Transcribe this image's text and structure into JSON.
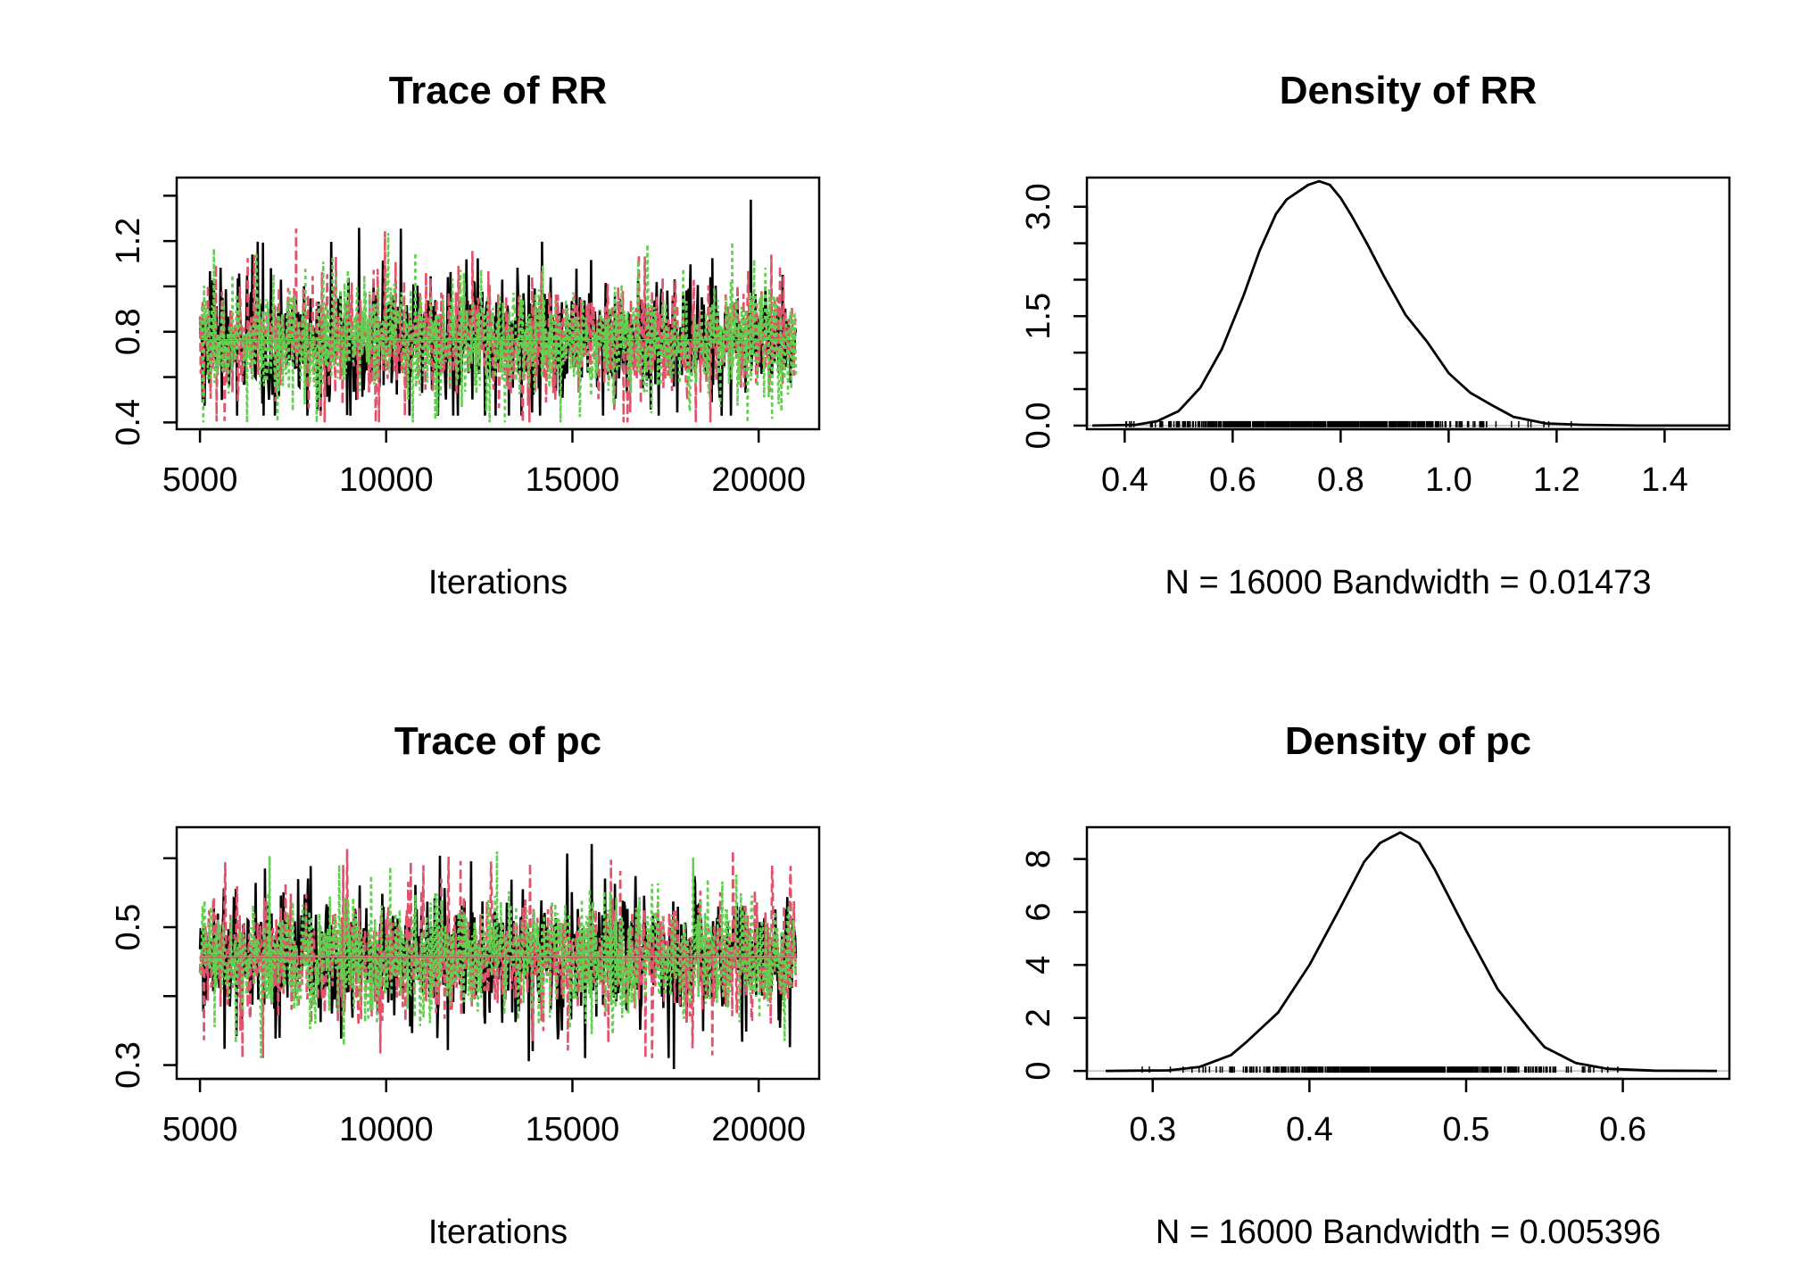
{
  "colors": {
    "chain1": "#000000",
    "chain2": "#DF536B",
    "chain3": "#61D04F"
  },
  "chart_data": [
    {
      "id": "trace-rr",
      "type": "line",
      "title": "Trace of RR",
      "xlabel": "Iterations",
      "ylabel": "",
      "xlim": [
        4375,
        21625
      ],
      "ylim": [
        0.37,
        1.48
      ],
      "xticks": [
        5000,
        10000,
        15000,
        20000
      ],
      "xtick_labels": [
        "5000",
        "10000",
        "15000",
        "20000"
      ],
      "yticks": [
        0.4,
        0.6,
        0.8,
        1.0,
        1.2,
        1.4
      ],
      "ytick_labels": [
        "0.4",
        "",
        "0.8",
        "",
        "1.2",
        ""
      ],
      "x_range": [
        5001,
        21000
      ],
      "series": [
        {
          "color": "#000000",
          "center": 0.765,
          "spread": 0.13,
          "min": 0.43,
          "max": 1.47
        },
        {
          "color": "#DF536B",
          "center": 0.765,
          "spread": 0.13,
          "min": 0.4,
          "max": 1.3
        },
        {
          "color": "#61D04F",
          "center": 0.765,
          "spread": 0.13,
          "min": 0.4,
          "max": 1.34
        }
      ]
    },
    {
      "id": "density-rr",
      "type": "line",
      "title": "Density of RR",
      "xlabel": "N = 16000   Bandwidth = 0.01473",
      "ylabel": "",
      "xlim": [
        0.33,
        1.52
      ],
      "ylim": [
        -0.05,
        3.4
      ],
      "xticks": [
        0.4,
        0.6,
        0.8,
        1.0,
        1.2,
        1.4
      ],
      "xtick_labels": [
        "0.4",
        "0.6",
        "0.8",
        "1.0",
        "1.2",
        "1.4"
      ],
      "yticks": [
        0.0,
        0.5,
        1.0,
        1.5,
        2.0,
        2.5,
        3.0
      ],
      "ytick_labels": [
        "0.0",
        "",
        "",
        "1.5",
        "",
        "",
        "3.0"
      ],
      "x": [
        0.34,
        0.42,
        0.46,
        0.5,
        0.54,
        0.58,
        0.62,
        0.65,
        0.68,
        0.7,
        0.72,
        0.74,
        0.76,
        0.78,
        0.8,
        0.82,
        0.85,
        0.88,
        0.92,
        0.96,
        1.0,
        1.04,
        1.08,
        1.12,
        1.18,
        1.25,
        1.35,
        1.52
      ],
      "y": [
        0.0,
        0.01,
        0.06,
        0.2,
        0.52,
        1.05,
        1.78,
        2.4,
        2.9,
        3.1,
        3.2,
        3.3,
        3.35,
        3.3,
        3.12,
        2.88,
        2.48,
        2.05,
        1.52,
        1.15,
        0.72,
        0.45,
        0.28,
        0.12,
        0.03,
        0.01,
        0.0,
        0.0
      ],
      "rug": {
        "min": 0.4,
        "max": 1.48
      }
    },
    {
      "id": "trace-pc",
      "type": "line",
      "title": "Trace of pc",
      "xlabel": "Iterations",
      "ylabel": "",
      "xlim": [
        4375,
        21625
      ],
      "ylim": [
        0.28,
        0.645
      ],
      "xticks": [
        5000,
        10000,
        15000,
        20000
      ],
      "xtick_labels": [
        "5000",
        "10000",
        "15000",
        "20000"
      ],
      "yticks": [
        0.3,
        0.4,
        0.5,
        0.6
      ],
      "ytick_labels": [
        "0.3",
        "",
        "0.5",
        ""
      ],
      "x_range": [
        5001,
        21000
      ],
      "series": [
        {
          "color": "#000000",
          "center": 0.458,
          "spread": 0.044,
          "min": 0.285,
          "max": 0.64
        },
        {
          "color": "#DF536B",
          "center": 0.456,
          "spread": 0.044,
          "min": 0.31,
          "max": 0.625
        },
        {
          "color": "#61D04F",
          "center": 0.458,
          "spread": 0.044,
          "min": 0.31,
          "max": 0.61
        }
      ]
    },
    {
      "id": "density-pc",
      "type": "line",
      "title": "Density of pc",
      "xlabel": "N = 16000   Bandwidth = 0.005396",
      "ylabel": "",
      "xlim": [
        0.258,
        0.668
      ],
      "ylim": [
        -0.3,
        9.2
      ],
      "xticks": [
        0.3,
        0.4,
        0.5,
        0.6
      ],
      "xtick_labels": [
        "0.3",
        "0.4",
        "0.5",
        "0.6"
      ],
      "yticks": [
        0,
        2,
        4,
        6,
        8
      ],
      "ytick_labels": [
        "0",
        "2",
        "4",
        "6",
        "8"
      ],
      "x": [
        0.27,
        0.31,
        0.33,
        0.35,
        0.36,
        0.38,
        0.4,
        0.42,
        0.435,
        0.445,
        0.458,
        0.47,
        0.48,
        0.5,
        0.52,
        0.54,
        0.55,
        0.57,
        0.59,
        0.62,
        0.66
      ],
      "y": [
        0.0,
        0.02,
        0.15,
        0.6,
        1.1,
        2.2,
        4.0,
        6.2,
        7.9,
        8.6,
        9.0,
        8.6,
        7.6,
        5.3,
        3.1,
        1.6,
        0.9,
        0.3,
        0.08,
        0.01,
        0.0
      ],
      "rug": {
        "min": 0.28,
        "max": 0.645
      }
    }
  ]
}
